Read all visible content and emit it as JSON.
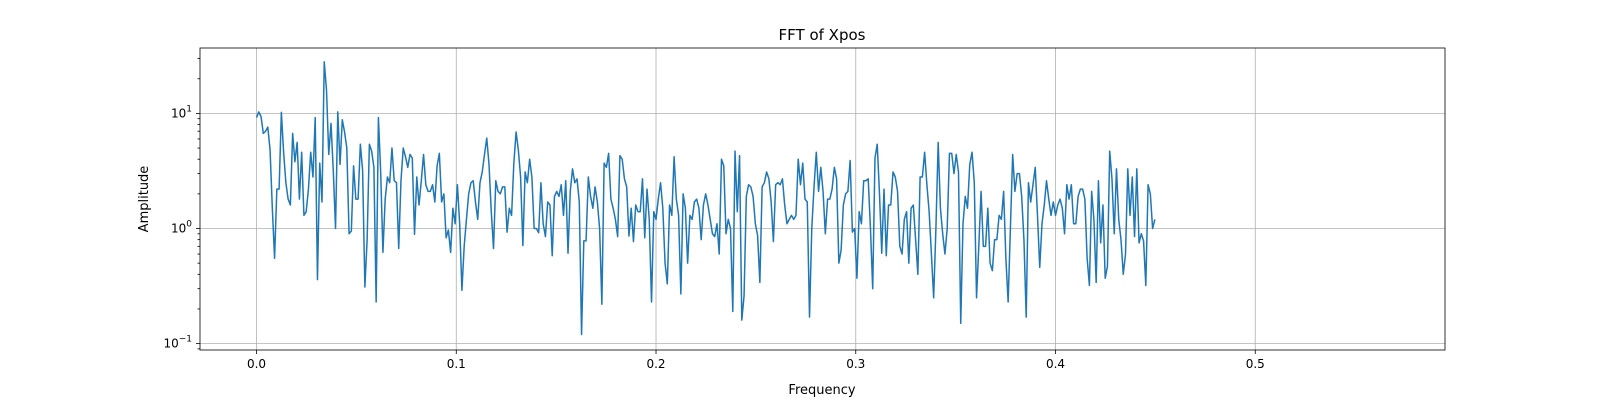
{
  "chart_data": {
    "type": "line",
    "title": "FFT of Xpos",
    "xlabel": "Frequency",
    "ylabel": "Amplitude",
    "yscale": "log",
    "grid": true,
    "xlim": [
      -0.0283,
      0.595
    ],
    "ylim": [
      0.088,
      37
    ],
    "x_ticks": [
      {
        "value": 0.0,
        "label": "0.0"
      },
      {
        "value": 0.1,
        "label": "0.1"
      },
      {
        "value": 0.2,
        "label": "0.2"
      },
      {
        "value": 0.3,
        "label": "0.3"
      },
      {
        "value": 0.4,
        "label": "0.4"
      },
      {
        "value": 0.5,
        "label": "0.5"
      }
    ],
    "y_ticks": [
      {
        "value": 0.1,
        "base": "10",
        "exp": "−1"
      },
      {
        "value": 1,
        "base": "10",
        "exp": "0"
      },
      {
        "value": 10,
        "base": "10",
        "exp": "1"
      }
    ],
    "line_color": "#1f77b4",
    "series": [
      {
        "x_start": 0.0,
        "x_step": 0.00113,
        "values": [
          9.2,
          10.3,
          9.4,
          6.7,
          7.0,
          7.6,
          4.8,
          1.5,
          0.55,
          2.2,
          2.2,
          10.2,
          4.6,
          2.5,
          1.8,
          1.6,
          6.7,
          3.8,
          5.6,
          1.8,
          4.6,
          1.3,
          1.4,
          2.2,
          4.6,
          2.8,
          9.2,
          0.36,
          3.7,
          1.7,
          28,
          16,
          4.4,
          8.2,
          3.2,
          1.0,
          10.3,
          3.6,
          8.8,
          6.9,
          5.0,
          0.9,
          0.95,
          3.5,
          1.8,
          1.8,
          5.4,
          3.2,
          0.31,
          0.8,
          5.4,
          4.7,
          3.4,
          0.23,
          9.2,
          3.1,
          0.62,
          1.8,
          2.8,
          2.5,
          5.0,
          2.6,
          2.5,
          0.67,
          2.6,
          5.0,
          4.2,
          3.4,
          4.4,
          4.1,
          0.89,
          2.8,
          1.6,
          2.6,
          4.4,
          2.4,
          2.1,
          2.1,
          2.4,
          1.7,
          3.5,
          4.5,
          1.7,
          2.0,
          0.83,
          0.97,
          0.62,
          1.5,
          1.1,
          2.4,
          1.1,
          0.29,
          0.7,
          1.2,
          2.0,
          2.5,
          2.6,
          1.7,
          1.2,
          2.5,
          3.1,
          4.4,
          6.1,
          3.6,
          1.4,
          0.67,
          2.6,
          2.1,
          2.0,
          2.3,
          2.3,
          0.93,
          1.5,
          1.3,
          3.7,
          6.9,
          4.8,
          2.8,
          0.71,
          3.1,
          2.5,
          4.0,
          2.8,
          1.0,
          1.0,
          0.92,
          2.5,
          1.1,
          0.85,
          1.7,
          1.6,
          0.58,
          1.9,
          2.1,
          1.9,
          2.4,
          1.3,
          2.6,
          0.61,
          2.1,
          3.3,
          2.5,
          2.7,
          1.7,
          0.12,
          0.78,
          0.78,
          2.8,
          1.9,
          1.5,
          2.3,
          1.7,
          1.0,
          0.22,
          3.7,
          3.4,
          4.5,
          1.8,
          1.5,
          1.2,
          0.85,
          4.3,
          4.0,
          2.7,
          2.3,
          0.86,
          1.5,
          0.77,
          1.6,
          1.4,
          1.4,
          2.7,
          0.83,
          2.2,
          1.2,
          0.23,
          1.4,
          1.2,
          1.8,
          2.5,
          1.5,
          0.5,
          0.33,
          1.6,
          1.3,
          4.2,
          1.8,
          1.3,
          0.27,
          2.0,
          1.5,
          0.5,
          1.3,
          1.2,
          1.7,
          1.8,
          1.5,
          0.8,
          1.6,
          2.0,
          1.6,
          1.2,
          0.9,
          0.85,
          1.1,
          0.6,
          4.0,
          3.5,
          0.9,
          1.2,
          1.0,
          0.19,
          4.7,
          1.4,
          4.3,
          0.16,
          0.26,
          1.9,
          2.4,
          2.3,
          1.9,
          1.1,
          0.87,
          0.34,
          2.3,
          2.5,
          3.1,
          2.7,
          1.7,
          0.77,
          2.4,
          2.5,
          2.4,
          2.7,
          1.6,
          1.1,
          1.2,
          1.3,
          1.2,
          1.3,
          4.0,
          2.4,
          3.7,
          1.8,
          1.7,
          0.17,
          1.0,
          2.3,
          4.6,
          2.1,
          3.4,
          2.1,
          0.9,
          1.8,
          1.8,
          2.2,
          3.4,
          2.7,
          0.5,
          0.65,
          1.6,
          2.0,
          2.1,
          3.9,
          0.93,
          1.0,
          0.37,
          1.4,
          1.1,
          2.6,
          2.6,
          2.7,
          1.0,
          0.3,
          4.1,
          5.4,
          2.0,
          0.61,
          2.2,
          0.58,
          1.6,
          1.6,
          3.1,
          2.8,
          2.1,
          0.7,
          0.6,
          1.2,
          1.4,
          0.5,
          1.5,
          1.6,
          0.8,
          0.4,
          2.8,
          2.8,
          4.6,
          2.4,
          1.4,
          0.6,
          0.25,
          1.0,
          5.6,
          1.5,
          0.9,
          0.6,
          1.0,
          4.5,
          4.5,
          3.0,
          4.4,
          3.1,
          0.15,
          1.1,
          1.9,
          1.5,
          3.6,
          4.6,
          2.5,
          0.25,
          0.7,
          2.1,
          0.7,
          0.7,
          1.5,
          0.5,
          0.43,
          0.8,
          0.8,
          1.3,
          1.2,
          2.1,
          0.55,
          0.23,
          1.0,
          4.4,
          2.1,
          3.0,
          3.0,
          1.9,
          0.8,
          0.17,
          2.5,
          1.7,
          2.4,
          3.4,
          1.3,
          0.46,
          1.1,
          1.6,
          2.6,
          1.8,
          1.3,
          1.7,
          1.3,
          1.6,
          1.8,
          1.5,
          0.9,
          2.4,
          1.8,
          2.4,
          1.1,
          1.1,
          1.9,
          2.2,
          2.2,
          1.8,
          0.55,
          0.32,
          2.1,
          1.2,
          0.34,
          2.6,
          0.75,
          1.6,
          0.37,
          0.47,
          4.7,
          2.7,
          0.9,
          3.3,
          1.2,
          0.8,
          0.4,
          0.6,
          3.3,
          1.3,
          2.8,
          0.85,
          3.3,
          0.75,
          0.9,
          0.78,
          0.32,
          2.4,
          2.0,
          1.0,
          1.2
        ]
      }
    ]
  }
}
